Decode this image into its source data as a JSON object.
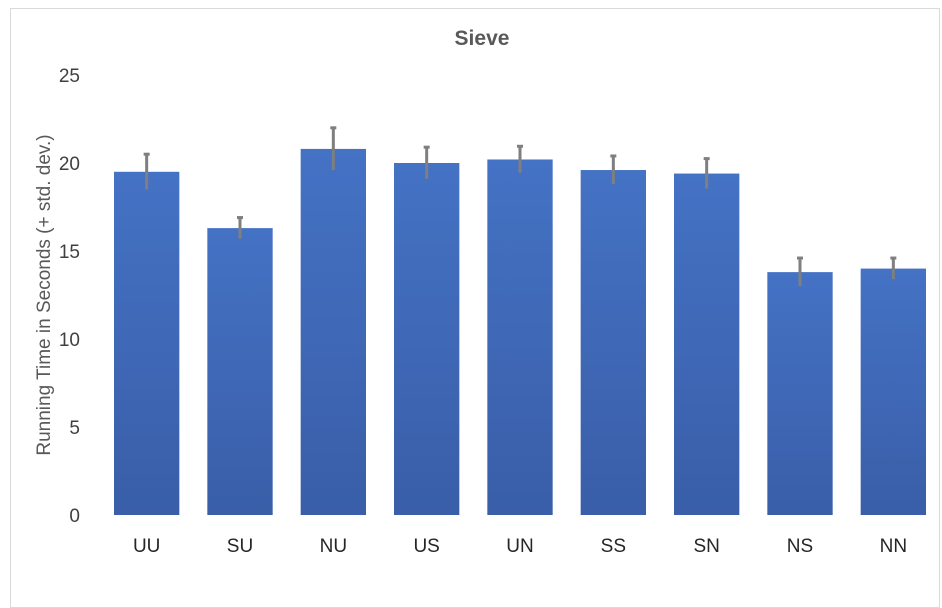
{
  "chart_data": {
    "type": "bar",
    "title": "Sieve",
    "xlabel": "",
    "ylabel": "Running Time in Seconds (+ std. dev.)",
    "categories": [
      "UU",
      "SU",
      "NU",
      "US",
      "UN",
      "SS",
      "SN",
      "NS",
      "NN"
    ],
    "values": [
      19.5,
      16.3,
      20.8,
      20.0,
      20.2,
      19.6,
      19.4,
      13.8,
      14.0
    ],
    "errors": [
      1.0,
      0.6,
      1.2,
      0.9,
      0.75,
      0.8,
      0.85,
      0.8,
      0.6
    ],
    "ylim": [
      0,
      25
    ],
    "yticks": [
      0,
      5,
      10,
      15,
      20,
      25
    ],
    "grid": false,
    "legend": "none",
    "colors": {
      "bar_top": "#4472c4",
      "bar_bottom": "#3a5ea8",
      "error_bar": "#7f7f7f"
    }
  }
}
